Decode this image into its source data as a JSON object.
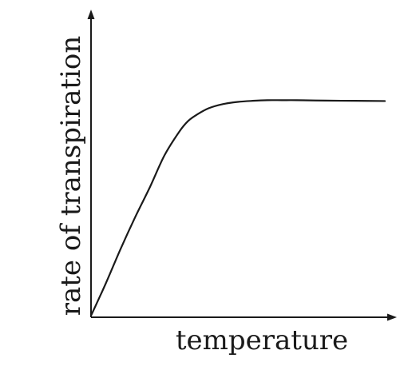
{
  "chart_data": {
    "type": "line",
    "xlabel": "temperature",
    "ylabel": "rate of transpiration",
    "xlim": [
      0,
      100
    ],
    "ylim": [
      0,
      100
    ],
    "grid": false,
    "legend": "none",
    "series": [
      {
        "x": [
          0,
          5,
          10,
          15,
          20,
          25,
          30,
          33,
          36,
          40,
          45,
          50,
          55,
          60,
          65,
          70,
          80,
          90,
          100
        ],
        "values": [
          0,
          15,
          31,
          46,
          60,
          75,
          86,
          91,
          94,
          97,
          99,
          100,
          100.5,
          100.8,
          100.8,
          100.8,
          100.6,
          100.5,
          100.4
        ]
      }
    ],
    "colors": {
      "line": "#1a1a1a",
      "axes": "#1a1a1a"
    }
  }
}
